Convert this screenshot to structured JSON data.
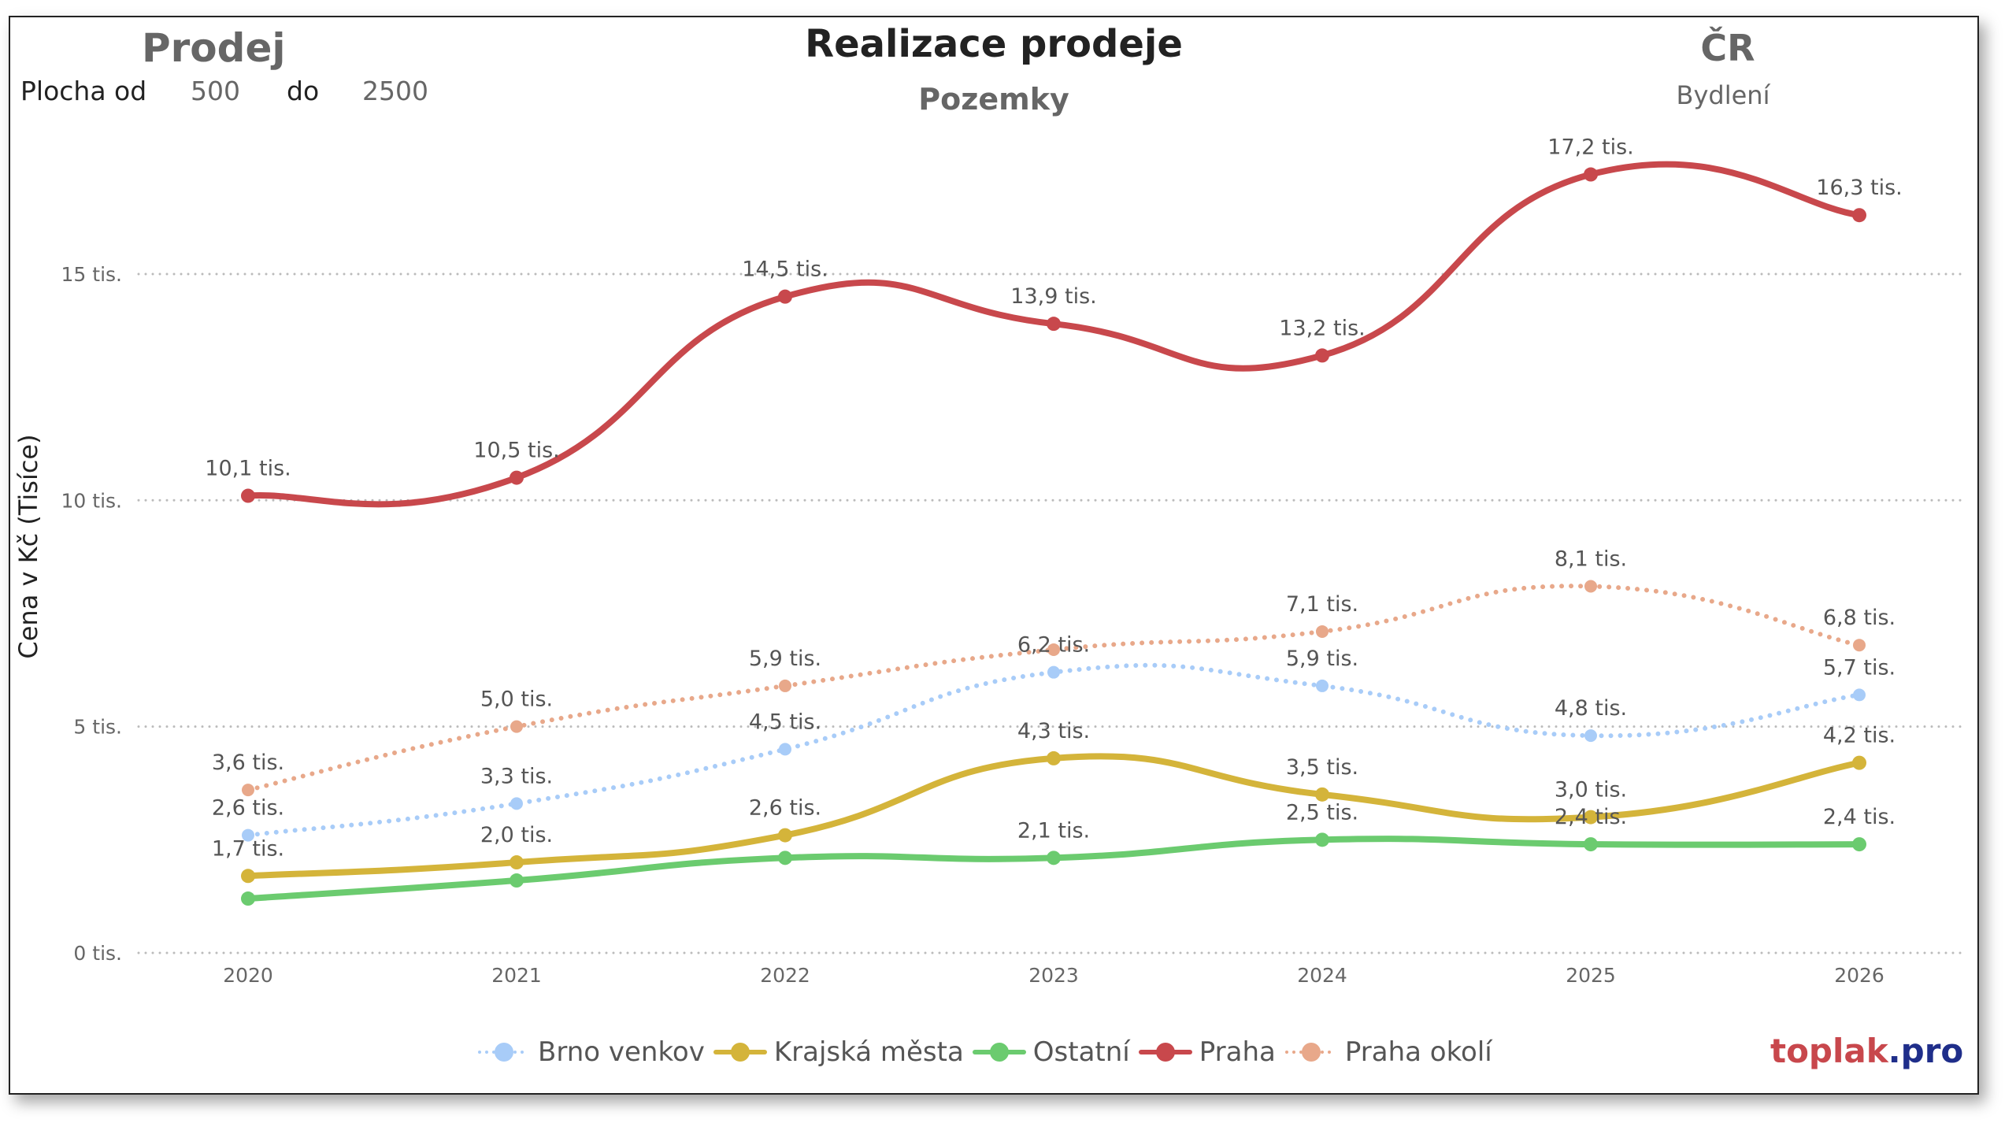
{
  "header": {
    "left_title": "Prodej",
    "filter_label": "Plocha od",
    "filter_from": "500",
    "filter_to_label": "do",
    "filter_to": "2500",
    "right_title": "ČR",
    "right_subtitle": "Bydlení"
  },
  "brand": {
    "part1": "toplak",
    "part2": ".pro",
    "color1": "#c8474c",
    "color2": "#1f2e8a"
  },
  "chart_data": {
    "type": "line",
    "title": "Realizace prodeje",
    "subtitle": "Pozemky",
    "xlabel": "",
    "ylabel": "Cena v Kč (Tisíce)",
    "x": [
      "2020",
      "2021",
      "2022",
      "2023",
      "2024",
      "2025",
      "2026"
    ],
    "ylim": [
      0,
      18
    ],
    "yticks": [
      0,
      5,
      10,
      15
    ],
    "ytick_labels": [
      "0 tis.",
      "5 tis.",
      "10 tis.",
      "15 tis."
    ],
    "grid": true,
    "legend_position": "bottom",
    "series": [
      {
        "name": "Brno venkov",
        "color": "#a8ccf8",
        "style": "dotted",
        "values": [
          2.6,
          3.3,
          4.5,
          6.2,
          5.9,
          4.8,
          5.7
        ],
        "labels": [
          "2,6 tis.",
          "3,3 tis.",
          "4,5 tis.",
          "6,2 tis.",
          "5,9 tis.",
          "4,8 tis.",
          "5,7 tis."
        ]
      },
      {
        "name": "Krajská města",
        "color": "#d4b43a",
        "style": "solid",
        "values": [
          1.7,
          2.0,
          2.6,
          4.3,
          3.5,
          3.0,
          4.2
        ],
        "labels": [
          "1,7 tis.",
          "2,0 tis.",
          "2,6 tis.",
          "4,3 tis.",
          "3,5 tis.",
          "3,0 tis.",
          "4,2 tis."
        ]
      },
      {
        "name": "Ostatní",
        "color": "#6bcb6f",
        "style": "solid",
        "values": [
          1.2,
          1.6,
          2.1,
          2.1,
          2.5,
          2.4,
          2.4
        ],
        "labels": [
          null,
          null,
          null,
          "2,1 tis.",
          "2,5 tis.",
          "2,4 tis.",
          "2,4 tis."
        ]
      },
      {
        "name": "Praha",
        "color": "#c8484c",
        "style": "solid",
        "values": [
          10.1,
          10.5,
          14.5,
          13.9,
          13.2,
          17.2,
          16.3
        ],
        "labels": [
          "10,1 tis.",
          "10,5 tis.",
          "14,5 tis.",
          "13,9 tis.",
          "13,2 tis.",
          "17,2 tis.",
          "16,3 tis."
        ]
      },
      {
        "name": "Praha okolí",
        "color": "#e8a88a",
        "style": "dotted",
        "values": [
          3.6,
          5.0,
          5.9,
          6.7,
          7.1,
          8.1,
          6.8
        ],
        "labels": [
          "3,6 tis.",
          "5,0 tis.",
          "5,9 tis.",
          null,
          "7,1 tis.",
          "8,1 tis.",
          "6,8 tis."
        ]
      }
    ]
  }
}
